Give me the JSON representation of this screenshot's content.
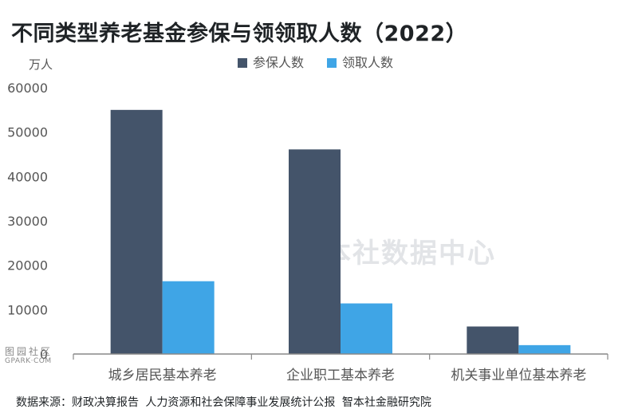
{
  "title": "不同类型养老基金参保与领领取人数（2022）",
  "unit_label": "万人",
  "watermark": "智本社数据中心",
  "source": "数据来源：财政决算报告 人力资源和社会保障事业发展统计公报 智本社金融研究院",
  "logo": {
    "glyphs": "图园社区",
    "url": "GPARK·COM"
  },
  "colors": {
    "series1": "#44546a",
    "series2": "#3fa5e6",
    "axis": "#888888",
    "text": "#555555"
  },
  "chart_data": {
    "type": "bar",
    "title": "不同类型养老基金参保与领领取人数（2022）",
    "ylabel": "万人",
    "ylim": [
      0,
      60000
    ],
    "yticks": [
      0,
      10000,
      20000,
      30000,
      40000,
      50000,
      60000
    ],
    "ytick_labels": [
      "0",
      "10000",
      "20000",
      "30000",
      "40000",
      "50000",
      "60000"
    ],
    "categories": [
      "城乡居民基本养老",
      "企业职工基本养老",
      "机关事业单位基本养老"
    ],
    "series": [
      {
        "name": "参保人数",
        "color": "#44546a",
        "values": [
          55000,
          46100,
          6200
        ]
      },
      {
        "name": "领取人数",
        "color": "#3fa5e6",
        "values": [
          16400,
          11400,
          2000
        ]
      }
    ],
    "legend_position": "top",
    "grid": false
  }
}
